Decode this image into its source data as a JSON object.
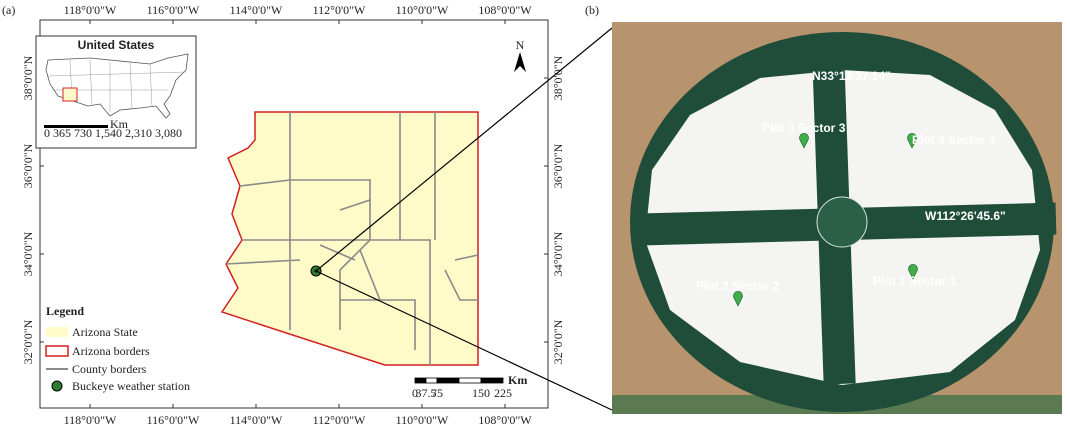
{
  "panel_a": {
    "label": "(a)",
    "longitudes": [
      "118°0'0\"W",
      "116°0'0\"W",
      "114°0'0\"W",
      "112°0'0\"W",
      "110°0'0\"W",
      "108°0'0\"W"
    ],
    "latitudes": [
      "38°0'0\"N",
      "36°0'0\"N",
      "34°0'0\"N",
      "32°0'0\"N"
    ],
    "inset": {
      "title": "United States",
      "scale_unit": "Km",
      "scale_labels": "0  365 730    1,540   2,310   3,080"
    },
    "north": "N",
    "legend": {
      "title": "Legend",
      "items": [
        "Arizona State",
        "Arizona borders",
        "County borders",
        "Buckeye weather station"
      ]
    },
    "scale": {
      "unit": "Km",
      "labels": [
        "0",
        "37.5",
        "75",
        "150",
        "225"
      ]
    }
  },
  "panel_b": {
    "label": "(b)",
    "coordinates": [
      "N33°13'37.14\"",
      "W112°26'45.6\""
    ],
    "plots": [
      "Plot 3 Sector 3",
      "Plot 4 Sector 4",
      "Plot 2 Sector 2",
      "Plot 1 Sector 1"
    ]
  }
}
